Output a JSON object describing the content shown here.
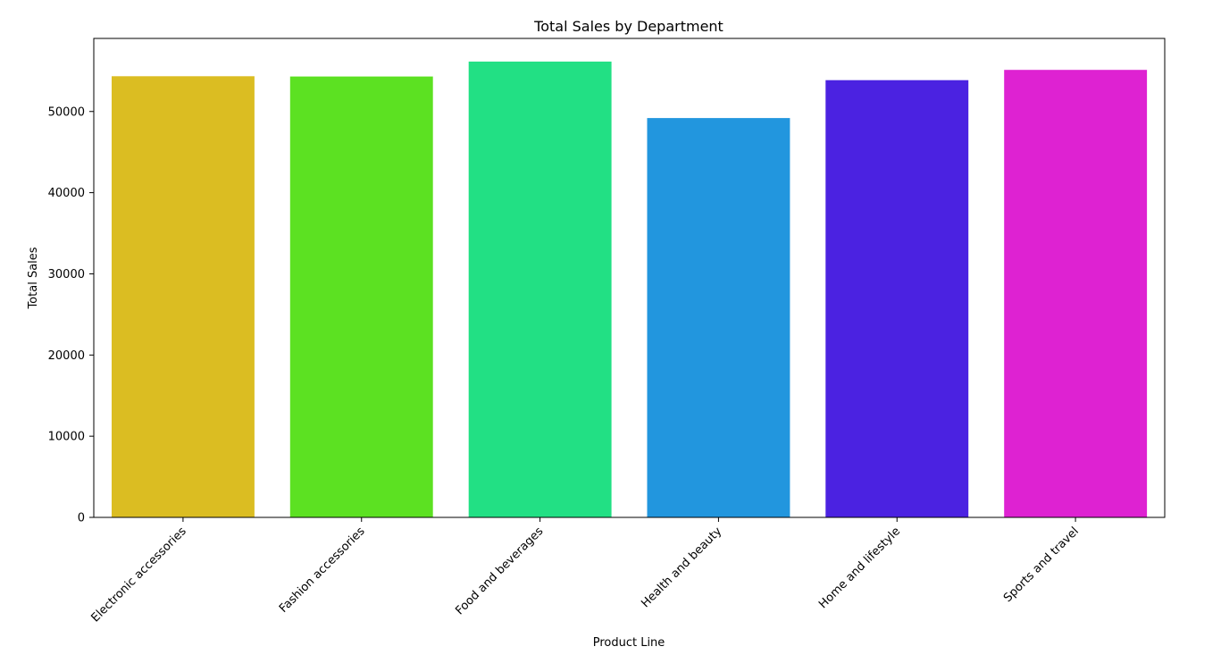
{
  "chart_data": {
    "type": "bar",
    "title": "Total Sales by Department",
    "xlabel": "Product Line",
    "ylabel": "Total Sales",
    "categories": [
      "Electronic accessories",
      "Fashion accessories",
      "Food and beverages",
      "Health and beauty",
      "Home and lifestyle",
      "Sports and travel"
    ],
    "values": [
      54340,
      54310,
      56150,
      49190,
      53860,
      55120
    ],
    "colors": [
      "#dbbd22",
      "#5ce122",
      "#22e084",
      "#2296de",
      "#4b22e1",
      "#de22d2"
    ],
    "yticks": [
      0,
      10000,
      20000,
      30000,
      40000,
      50000
    ],
    "ylim": [
      0,
      59000
    ],
    "grid": false,
    "legend": "none"
  }
}
